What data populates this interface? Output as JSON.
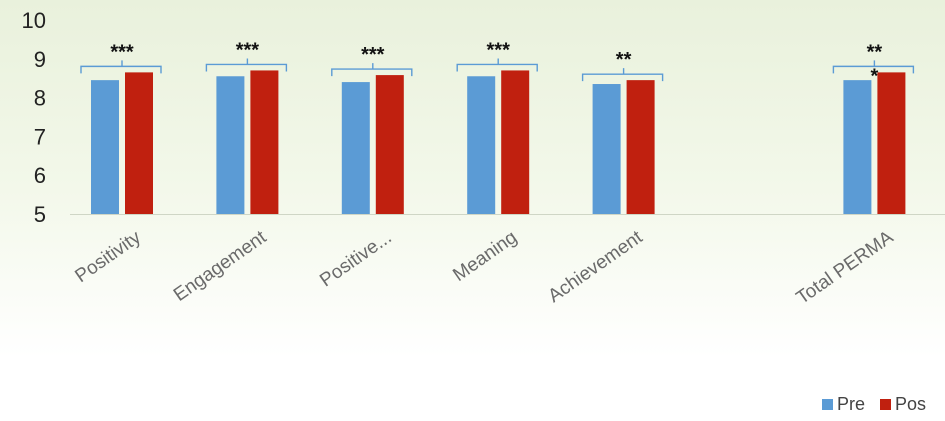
{
  "chart_data": {
    "type": "bar",
    "categories": [
      "Positivity",
      "Engagement",
      "Positive...",
      "Meaning",
      "Achievement",
      "",
      "Total PERMA"
    ],
    "series": [
      {
        "name": "Pre",
        "color": "#5b9bd5",
        "values": [
          8.45,
          8.55,
          8.4,
          8.55,
          8.35,
          null,
          8.45
        ]
      },
      {
        "name": "Pos",
        "color": "#c0200f",
        "values": [
          8.65,
          8.7,
          8.58,
          8.7,
          8.45,
          null,
          8.65
        ]
      }
    ],
    "annotations": [
      "***",
      "***",
      "***",
      "***",
      "**",
      "",
      "**"
    ],
    "annotation_extra": {
      "index": 6,
      "text": "*"
    },
    "yticks": [
      5,
      6,
      7,
      8,
      9,
      10
    ],
    "ylim": [
      5,
      10
    ],
    "grid": false,
    "legend_position": "bottom-right",
    "title": "",
    "xlabel": "",
    "ylabel": ""
  }
}
